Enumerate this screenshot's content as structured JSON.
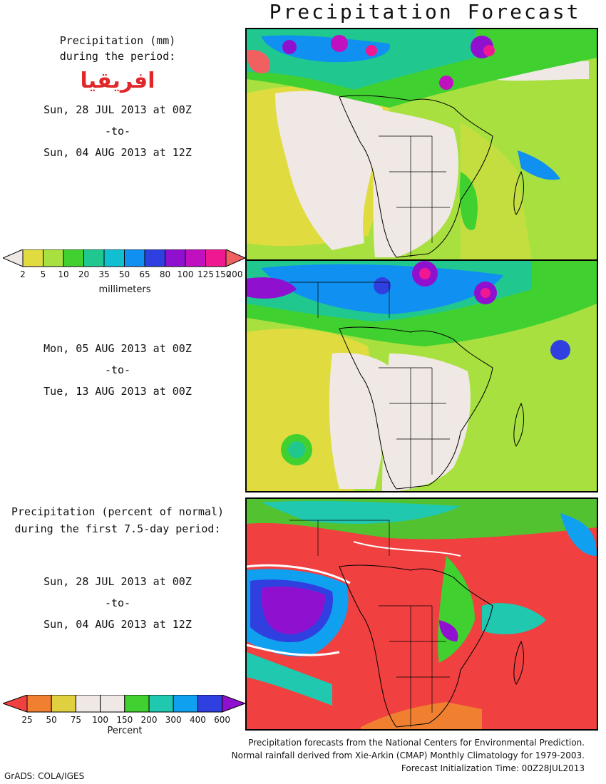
{
  "title": "Precipitation Forecast",
  "top_block": {
    "line1": "Precipitation (mm)",
    "line2": "during the period:",
    "region": "افريقيا",
    "start": "Sun, 28 JUL 2013 at 00Z",
    "to": "-to-",
    "end": "Sun, 04 AUG 2013 at 12Z"
  },
  "middle_block": {
    "start": "Mon, 05 AUG 2013 at 00Z",
    "to": "-to-",
    "end": "Tue, 13 AUG 2013 at 00Z"
  },
  "bottom_block": {
    "line1": "Precipitation (percent of normal)",
    "line2": "during the first 7.5-day period:",
    "start": "Sun, 28 JUL 2013 at 00Z",
    "to": "-to-",
    "end": "Sun, 04 AUG 2013 at 12Z"
  },
  "mm_colorbar": {
    "unit": "millimeters",
    "ticks": [
      "2",
      "5",
      "10",
      "20",
      "35",
      "50",
      "65",
      "80",
      "100",
      "125",
      "150",
      "200"
    ],
    "colors": [
      "#f0e8e4",
      "#e0dc40",
      "#a8e040",
      "#40d030",
      "#20c890",
      "#10c0d0",
      "#1090f0",
      "#3040e0",
      "#9010d0",
      "#c010c0",
      "#f01890",
      "#f06060",
      "#f09080"
    ]
  },
  "pct_colorbar": {
    "unit": "Percent",
    "ticks": [
      "25",
      "50",
      "75",
      "100",
      "150",
      "200",
      "300",
      "400",
      "600"
    ],
    "colors": [
      "#f04040",
      "#f08030",
      "#e0d040",
      "#f0e8e4",
      "#f0e8e4",
      "#40d030",
      "#20c8b0",
      "#10a0f0",
      "#3040e0",
      "#9010d0"
    ]
  },
  "footer": {
    "line1": "Precipitation forecasts from the National Centers for Environmental Prediction.",
    "line2": "Normal rainfall derived from Xie-Arkin (CMAP) Monthly Climatology for 1979-2003.",
    "line3": "Forecast Initialization Time: 00Z28JUL2013"
  },
  "credit": "GrADS: COLA/IGES"
}
